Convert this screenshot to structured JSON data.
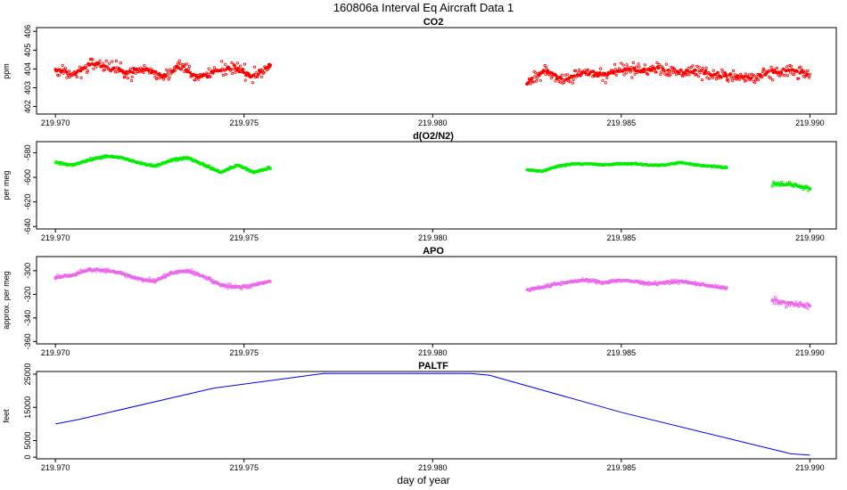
{
  "chart_data": {
    "type": "multi-panel",
    "title": "160806a   Interval Eq Aircraft Data 1",
    "xlabel": "day of year",
    "xlim": [
      219.9695,
      219.9907
    ],
    "xticks": [
      219.97,
      219.975,
      219.98,
      219.985,
      219.99
    ],
    "xtick_labels": [
      "219.970",
      "219.975",
      "219.980",
      "219.985",
      "219.990"
    ],
    "panels": [
      {
        "title": "CO2",
        "ylabel": "ppm",
        "type": "scatter",
        "color": "#ff0000",
        "ylim": [
          401.6,
          406.2
        ],
        "yticks": [
          402,
          403,
          404,
          405,
          406
        ],
        "ytick_labels": [
          "402",
          "403",
          "404",
          "405",
          "406"
        ],
        "segments": [
          {
            "x_start": 219.97,
            "x_end": 219.9757,
            "base": [
              404.0,
              403.7,
              404.3,
              404.1,
              403.8,
              404.0,
              403.6,
              404.2,
              403.5,
              403.9,
              404.1,
              403.6,
              404.2
            ],
            "spread": 1.1
          },
          {
            "x_start": 219.9825,
            "x_end": 219.99,
            "base": [
              403.2,
              403.9,
              403.4,
              403.8,
              403.7,
              404.0,
              403.9,
              404.1,
              403.8,
              403.9,
              403.7,
              403.6,
              403.5,
              403.8,
              403.9,
              403.7
            ],
            "spread": 1.1
          }
        ]
      },
      {
        "title": "d(O2/N2)",
        "ylabel": "per meg",
        "type": "scatter",
        "color": "#00ee00",
        "ylim": [
          -642,
          -571
        ],
        "yticks": [
          -640,
          -620,
          -600,
          -580
        ],
        "ytick_labels": [
          "-640",
          "-620",
          "-600",
          "-580"
        ],
        "segments": [
          {
            "x_start": 219.97,
            "x_end": 219.9757,
            "base": [
              -588,
              -590,
              -586,
              -583,
              -584,
              -588,
              -591,
              -586,
              -584,
              -590,
              -596,
              -590,
              -596,
              -592
            ],
            "spread": 3
          },
          {
            "x_start": 219.9825,
            "x_end": 219.9878,
            "base": [
              -594,
              -595,
              -591,
              -589,
              -589,
              -590,
              -589,
              -589,
              -590,
              -590,
              -588,
              -590,
              -591,
              -592
            ],
            "spread": 2
          },
          {
            "x_start": 219.989,
            "x_end": 219.99,
            "base": [
              -605,
              -606,
              -609
            ],
            "spread": 6
          }
        ]
      },
      {
        "title": "APO",
        "ylabel": "approx. per meg",
        "type": "scatter",
        "color": "#ee66ee",
        "ylim": [
          -362,
          -288
        ],
        "yticks": [
          -360,
          -340,
          -320,
          -300
        ],
        "ytick_labels": [
          "-360",
          "-340",
          "-320",
          "-300"
        ],
        "segments": [
          {
            "x_start": 219.97,
            "x_end": 219.9757,
            "base": [
              -306,
              -304,
              -299,
              -300,
              -302,
              -307,
              -309,
              -302,
              -300,
              -305,
              -312,
              -314,
              -312,
              -309
            ],
            "spread": 5
          },
          {
            "x_start": 219.9825,
            "x_end": 219.9878,
            "base": [
              -316,
              -314,
              -311,
              -309,
              -308,
              -310,
              -308,
              -309,
              -311,
              -310,
              -309,
              -311,
              -313,
              -315
            ],
            "spread": 4
          },
          {
            "x_start": 219.989,
            "x_end": 219.99,
            "base": [
              -325,
              -328,
              -330
            ],
            "spread": 8
          }
        ]
      },
      {
        "title": "PALTF",
        "ylabel": "feet",
        "type": "line",
        "color": "#0000ee",
        "ylim": [
          -500,
          25800
        ],
        "yticks": [
          0,
          5000,
          15000,
          25000
        ],
        "ytick_labels": [
          "0",
          "5000",
          "15000",
          "25000"
        ],
        "x": [
          219.97,
          219.9706,
          219.9742,
          219.9771,
          219.981,
          219.9815,
          219.985,
          219.9895,
          219.99
        ],
        "y": [
          10000,
          11300,
          20800,
          25200,
          25200,
          24700,
          13500,
          1000,
          600
        ]
      }
    ]
  }
}
